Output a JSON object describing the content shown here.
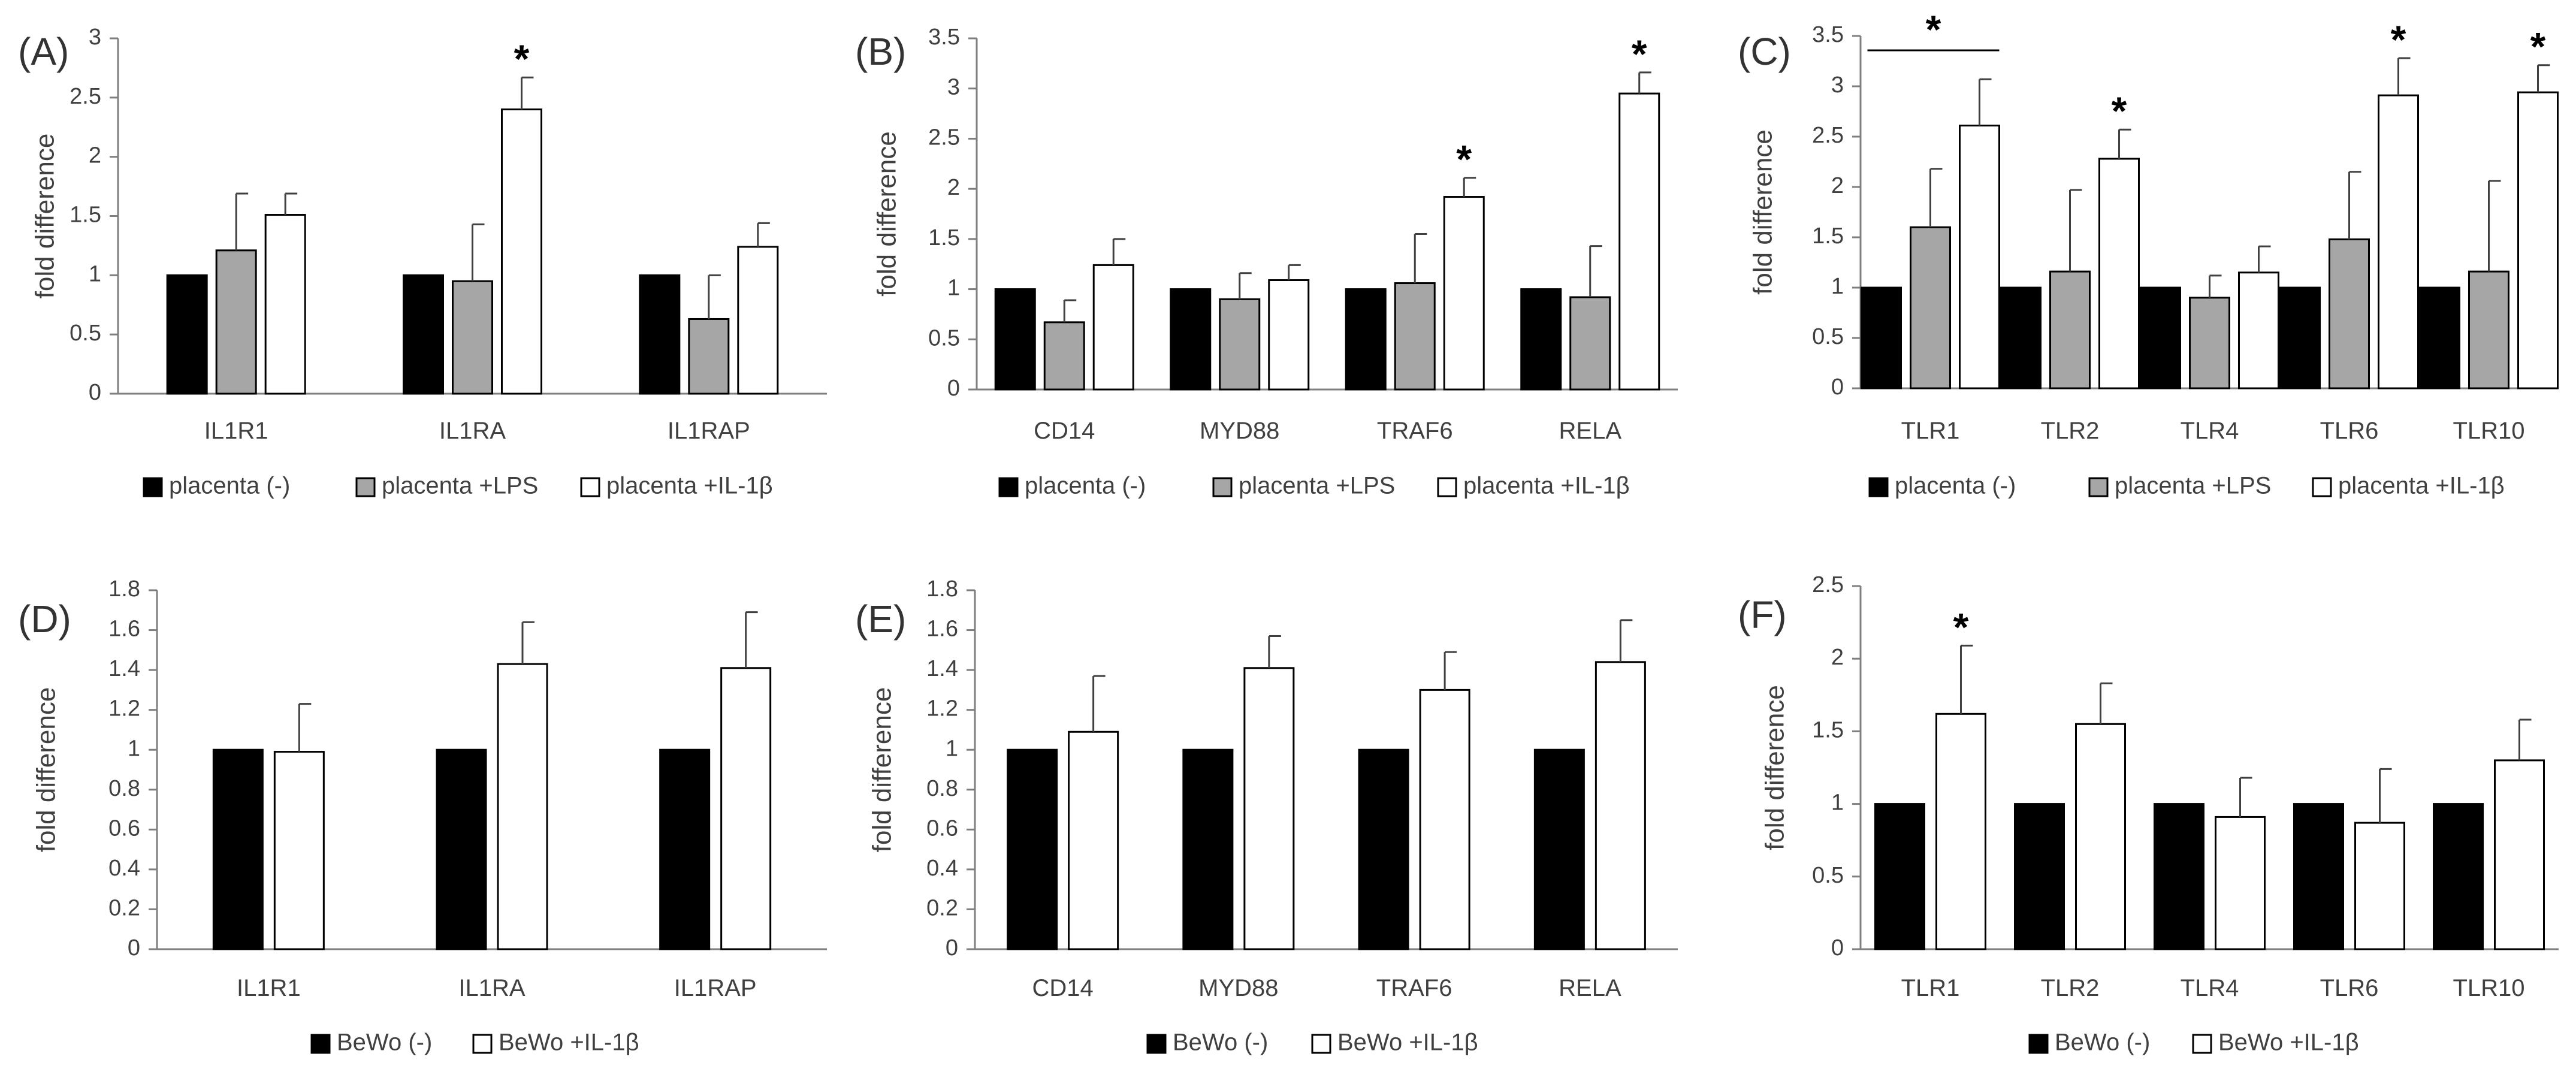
{
  "figure": {
    "background": "#ffffff",
    "axis_color": "#7f7f7f",
    "text_color": "#404040"
  },
  "colors": {
    "placenta_neg": "#000000",
    "placenta_lps": "#a6a6a6",
    "placenta_il1b": "#ffffff",
    "bewo_neg": "#000000",
    "bewo_il1b": "#ffffff"
  },
  "chart_data": [
    {
      "panel": "(A)",
      "type": "bar",
      "ylabel": "fold difference",
      "ylim": [
        0,
        3
      ],
      "yticks": [
        "0",
        "0.5",
        "1",
        "1.5",
        "2",
        "2.5",
        "3"
      ],
      "categories": [
        "IL1R1",
        "IL1RA",
        "IL1RAP"
      ],
      "series": [
        {
          "name": "placenta (-)",
          "color": "#000000",
          "values": [
            1,
            1,
            1
          ],
          "errors": [
            0,
            0,
            0
          ]
        },
        {
          "name": "placenta +LPS",
          "color": "#a6a6a6",
          "values": [
            1.21,
            0.95,
            0.63
          ],
          "errors": [
            0.48,
            0.48,
            0.37
          ]
        },
        {
          "name": "placenta +IL-1β",
          "color": "#ffffff",
          "values": [
            1.51,
            2.4,
            1.24
          ],
          "errors": [
            0.18,
            0.27,
            0.2
          ]
        }
      ],
      "significance": [
        {
          "category": 1,
          "series": 2,
          "label": "*"
        }
      ]
    },
    {
      "panel": "(B)",
      "type": "bar",
      "ylabel": "fold difference",
      "ylim": [
        0,
        3.5
      ],
      "yticks": [
        "0",
        "0.5",
        "1",
        "1.5",
        "2",
        "2.5",
        "3",
        "3.5"
      ],
      "categories": [
        "CD14",
        "MYD88",
        "TRAF6",
        "RELA"
      ],
      "series": [
        {
          "name": "placenta (-)",
          "color": "#000000",
          "values": [
            1,
            1,
            1,
            1
          ],
          "errors": [
            0,
            0,
            0,
            0
          ]
        },
        {
          "name": "placenta +LPS",
          "color": "#a6a6a6",
          "values": [
            0.67,
            0.9,
            1.06,
            0.92
          ],
          "errors": [
            0.22,
            0.26,
            0.49,
            0.51
          ]
        },
        {
          "name": "placenta +IL-1β",
          "color": "#ffffff",
          "values": [
            1.24,
            1.09,
            1.92,
            2.95
          ],
          "errors": [
            0.26,
            0.15,
            0.19,
            0.21
          ]
        }
      ],
      "significance": [
        {
          "category": 2,
          "series": 2,
          "label": "*"
        },
        {
          "category": 3,
          "series": 2,
          "label": "*"
        }
      ]
    },
    {
      "panel": "(C)",
      "type": "bar",
      "ylabel": "fold difference",
      "ylim": [
        0,
        3.5
      ],
      "yticks": [
        "0",
        "0.5",
        "1",
        "1.5",
        "2",
        "2.5",
        "3",
        "3.5"
      ],
      "categories": [
        "TLR1",
        "TLR2",
        "TLR4",
        "TLR6",
        "TLR10"
      ],
      "series": [
        {
          "name": "placenta (-)",
          "color": "#000000",
          "values": [
            1,
            1,
            1,
            1,
            1
          ],
          "errors": [
            0,
            0,
            0,
            0,
            0
          ]
        },
        {
          "name": "placenta +LPS",
          "color": "#a6a6a6",
          "values": [
            1.6,
            1.16,
            0.9,
            1.48,
            1.16
          ],
          "errors": [
            0.58,
            0.81,
            0.22,
            0.67,
            0.9
          ]
        },
        {
          "name": "placenta +IL-1β",
          "color": "#ffffff",
          "values": [
            2.61,
            2.28,
            1.15,
            2.91,
            2.94
          ],
          "errors": [
            0.46,
            0.29,
            0.26,
            0.37,
            0.27
          ]
        }
      ],
      "significance": [
        {
          "category": 0,
          "series": 2,
          "label": "*",
          "bracket_from_series": 0
        },
        {
          "category": 1,
          "series": 2,
          "label": "*"
        },
        {
          "category": 3,
          "series": 2,
          "label": "*"
        },
        {
          "category": 4,
          "series": 2,
          "label": "*"
        }
      ]
    },
    {
      "panel": "(D)",
      "type": "bar",
      "ylabel": "fold difference",
      "ylim": [
        0,
        1.8
      ],
      "yticks": [
        "0",
        "0.2",
        "0.4",
        "0.6",
        "0.8",
        "1",
        "1.2",
        "1.4",
        "1.6",
        "1.8"
      ],
      "categories": [
        "IL1R1",
        "IL1RA",
        "IL1RAP"
      ],
      "series": [
        {
          "name": "BeWo (-)",
          "color": "#000000",
          "values": [
            1,
            1,
            1
          ],
          "errors": [
            0,
            0,
            0
          ]
        },
        {
          "name": "BeWo +IL-1β",
          "color": "#ffffff",
          "values": [
            0.99,
            1.43,
            1.41
          ],
          "errors": [
            0.24,
            0.21,
            0.28
          ]
        }
      ],
      "significance": []
    },
    {
      "panel": "(E)",
      "type": "bar",
      "ylabel": "fold difference",
      "ylim": [
        0,
        1.8
      ],
      "yticks": [
        "0",
        "0.2",
        "0.4",
        "0.6",
        "0.8",
        "1",
        "1.2",
        "1.4",
        "1.6",
        "1.8"
      ],
      "categories": [
        "CD14",
        "MYD88",
        "TRAF6",
        "RELA"
      ],
      "series": [
        {
          "name": "BeWo (-)",
          "color": "#000000",
          "values": [
            1,
            1,
            1,
            1
          ],
          "errors": [
            0,
            0,
            0,
            0
          ]
        },
        {
          "name": "BeWo +IL-1β",
          "color": "#ffffff",
          "values": [
            1.09,
            1.41,
            1.3,
            1.44
          ],
          "errors": [
            0.28,
            0.16,
            0.19,
            0.21
          ]
        }
      ],
      "significance": []
    },
    {
      "panel": "(F)",
      "type": "bar",
      "ylabel": "fold difference",
      "ylim": [
        0,
        2.5
      ],
      "yticks": [
        "0",
        "0.5",
        "1",
        "1.5",
        "2",
        "2.5"
      ],
      "categories": [
        "TLR1",
        "TLR2",
        "TLR4",
        "TLR6",
        "TLR10"
      ],
      "series": [
        {
          "name": "BeWo (-)",
          "color": "#000000",
          "values": [
            1,
            1,
            1,
            1,
            1
          ],
          "errors": [
            0,
            0,
            0,
            0,
            0
          ]
        },
        {
          "name": "BeWo +IL-1β",
          "color": "#ffffff",
          "values": [
            1.62,
            1.55,
            0.91,
            0.87,
            1.3
          ],
          "errors": [
            0.47,
            0.28,
            0.27,
            0.37,
            0.28
          ]
        }
      ],
      "significance": [
        {
          "category": 0,
          "series": 1,
          "label": "*"
        }
      ]
    }
  ]
}
